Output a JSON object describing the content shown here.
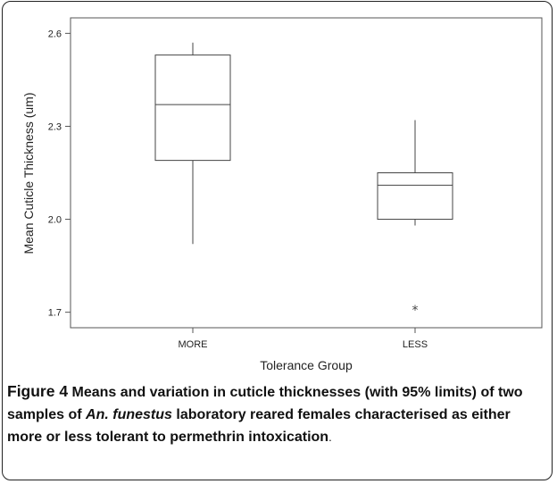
{
  "chart_data": {
    "type": "box",
    "xlabel": "Tolerance Group",
    "ylabel": "Mean Cuticle Thickness (um)",
    "categories": [
      "MORE",
      "LESS"
    ],
    "yticks": [
      "1.7",
      "2.0",
      "2.3",
      "2.6"
    ],
    "ylim": [
      1.65,
      2.65
    ],
    "grid": false,
    "boxes": [
      {
        "category": "MORE",
        "whisker_low": 1.92,
        "q1": 2.19,
        "median": 2.37,
        "q3": 2.53,
        "whisker_high": 2.57,
        "outliers": []
      },
      {
        "category": "LESS",
        "whisker_low": 1.98,
        "q1": 2.0,
        "median": 2.11,
        "q3": 2.15,
        "whisker_high": 2.32,
        "outliers": [
          1.71
        ]
      }
    ],
    "outlier_marker": "*"
  },
  "caption": {
    "label": "Figure 4",
    "text_part1": " Means and variation in cuticle thicknesses (with 95% limits) of two samples of ",
    "species": "An. funestus",
    "text_part2": " laboratory reared females characterised as either more or less tolerant to permethrin intoxication",
    "tail": "."
  }
}
